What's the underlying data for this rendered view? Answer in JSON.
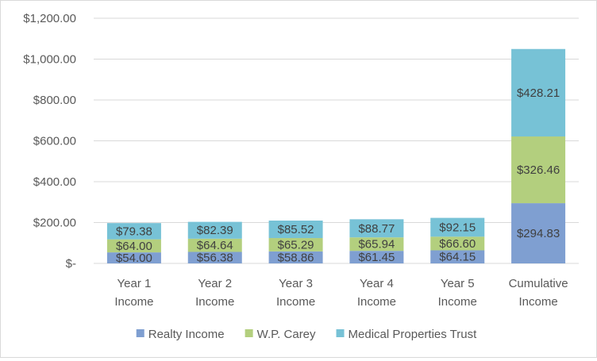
{
  "chart_data": {
    "type": "bar",
    "stacked": true,
    "categories": [
      [
        "Year 1",
        "Income"
      ],
      [
        "Year 2",
        "Income"
      ],
      [
        "Year 3",
        "Income"
      ],
      [
        "Year 4",
        "Income"
      ],
      [
        "Year 5",
        "Income"
      ],
      [
        "Cumulative",
        "Income"
      ]
    ],
    "series": [
      {
        "name": "Realty Income",
        "color": "#7f9fd1",
        "values": [
          54.0,
          56.38,
          58.86,
          61.45,
          64.15,
          294.83
        ],
        "labels": [
          "$54.00",
          "$56.38",
          "$58.86",
          "$61.45",
          "$64.15",
          "$294.83"
        ]
      },
      {
        "name": "W.P. Carey",
        "color": "#b3cf7e",
        "values": [
          64.0,
          64.64,
          65.29,
          65.94,
          66.6,
          326.46
        ],
        "labels": [
          "$64.00",
          "$64.64",
          "$65.29",
          "$65.94",
          "$66.60",
          "$326.46"
        ]
      },
      {
        "name": "Medical Properties Trust",
        "color": "#77c2d6",
        "values": [
          79.38,
          82.39,
          85.52,
          88.77,
          92.15,
          428.21
        ],
        "labels": [
          "$79.38",
          "$82.39",
          "$85.52",
          "$88.77",
          "$92.15",
          "$428.21"
        ]
      }
    ],
    "ylim": [
      0,
      1200
    ],
    "yticks": [
      0,
      200,
      400,
      600,
      800,
      1000,
      1200
    ],
    "ytick_labels": [
      "$-",
      "$200.00",
      "$400.00",
      "$600.00",
      "$800.00",
      "$1,000.00",
      "$1,200.00"
    ],
    "grid": true,
    "legend": "bottom",
    "title": "",
    "xlabel": "",
    "ylabel": ""
  }
}
